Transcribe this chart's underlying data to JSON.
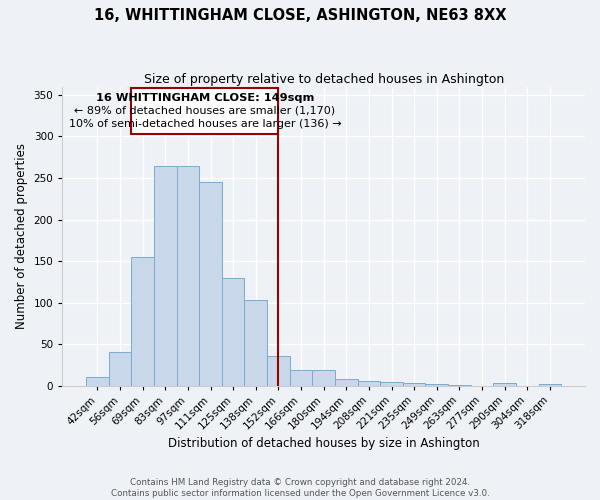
{
  "title": "16, WHITTINGHAM CLOSE, ASHINGTON, NE63 8XX",
  "subtitle": "Size of property relative to detached houses in Ashington",
  "xlabel": "Distribution of detached houses by size in Ashington",
  "ylabel": "Number of detached properties",
  "bin_labels": [
    "42sqm",
    "56sqm",
    "69sqm",
    "83sqm",
    "97sqm",
    "111sqm",
    "125sqm",
    "138sqm",
    "152sqm",
    "166sqm",
    "180sqm",
    "194sqm",
    "208sqm",
    "221sqm",
    "235sqm",
    "249sqm",
    "263sqm",
    "277sqm",
    "290sqm",
    "304sqm",
    "318sqm"
  ],
  "bar_values": [
    10,
    41,
    155,
    265,
    265,
    245,
    130,
    103,
    35,
    19,
    19,
    8,
    5,
    4,
    3,
    2,
    1,
    0,
    3,
    0,
    2
  ],
  "bar_color": "#c8d8ea",
  "bar_edge_color": "#7aabcf",
  "vline_x_index": 8,
  "vline_color": "#990000",
  "annotation_title": "16 WHITTINGHAM CLOSE: 149sqm",
  "annotation_line1": "← 89% of detached houses are smaller (1,170)",
  "annotation_line2": "10% of semi-detached houses are larger (136) →",
  "annotation_box_color": "#990000",
  "ylim": [
    0,
    360
  ],
  "yticks": [
    0,
    50,
    100,
    150,
    200,
    250,
    300,
    350
  ],
  "footer_line1": "Contains HM Land Registry data © Crown copyright and database right 2024.",
  "footer_line2": "Contains public sector information licensed under the Open Government Licence v3.0.",
  "bg_color": "#eef2f7",
  "plot_bg_color": "#eef2f7",
  "grid_color": "#ffffff",
  "title_fontsize": 10.5,
  "subtitle_fontsize": 9,
  "ylabel_fontsize": 8.5,
  "xlabel_fontsize": 8.5
}
